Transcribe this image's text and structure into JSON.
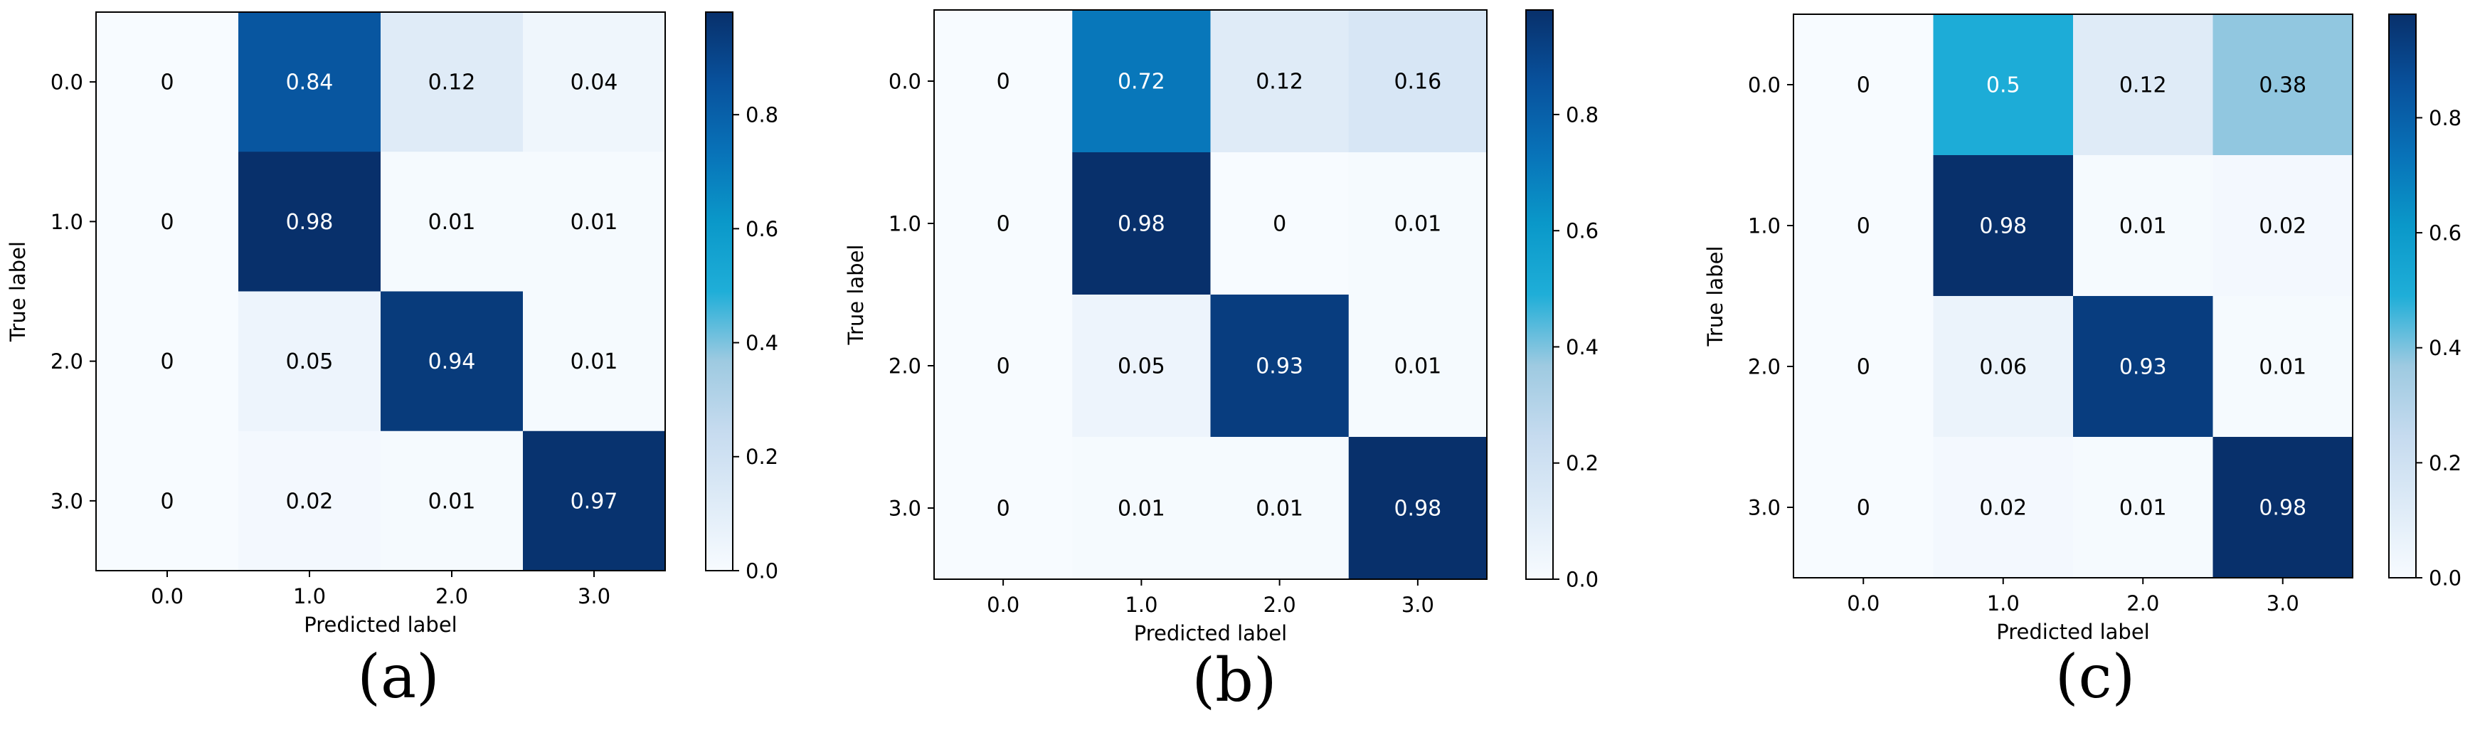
{
  "chart_data": [
    {
      "type": "heatmap",
      "caption": "(a)",
      "xlabel": "Predicted label",
      "ylabel": "True label",
      "x_categories": [
        "0.0",
        "1.0",
        "2.0",
        "3.0"
      ],
      "y_categories": [
        "0.0",
        "1.0",
        "2.0",
        "3.0"
      ],
      "values": [
        [
          0.0,
          0.84,
          0.12,
          0.04
        ],
        [
          0.0,
          0.98,
          0.01,
          0.01
        ],
        [
          0.0,
          0.05,
          0.94,
          0.01
        ],
        [
          0.0,
          0.02,
          0.01,
          0.97
        ]
      ],
      "colorbar": {
        "ticks": [
          "0.0",
          "0.2",
          "0.4",
          "0.6",
          "0.8"
        ],
        "range": [
          0,
          0.98
        ],
        "colormap": "Blues"
      }
    },
    {
      "type": "heatmap",
      "caption": "(b)",
      "xlabel": "Predicted label",
      "ylabel": "True label",
      "x_categories": [
        "0.0",
        "1.0",
        "2.0",
        "3.0"
      ],
      "y_categories": [
        "0.0",
        "1.0",
        "2.0",
        "3.0"
      ],
      "values": [
        [
          0.0,
          0.72,
          0.12,
          0.16
        ],
        [
          0.0,
          0.98,
          0.0,
          0.01
        ],
        [
          0.0,
          0.05,
          0.93,
          0.01
        ],
        [
          0.0,
          0.01,
          0.01,
          0.98
        ]
      ],
      "colorbar": {
        "ticks": [
          "0.0",
          "0.2",
          "0.4",
          "0.6",
          "0.8"
        ],
        "range": [
          0,
          0.98
        ],
        "colormap": "Blues"
      }
    },
    {
      "type": "heatmap",
      "caption": "(c)",
      "xlabel": "Predicted label",
      "ylabel": "True label",
      "x_categories": [
        "0.0",
        "1.0",
        "2.0",
        "3.0"
      ],
      "y_categories": [
        "0.0",
        "1.0",
        "2.0",
        "3.0"
      ],
      "values": [
        [
          0.0,
          0.5,
          0.12,
          0.38
        ],
        [
          0.0,
          0.98,
          0.01,
          0.02
        ],
        [
          0.0,
          0.06,
          0.93,
          0.01
        ],
        [
          0.0,
          0.02,
          0.01,
          0.98
        ]
      ],
      "colorbar": {
        "ticks": [
          "0.0",
          "0.2",
          "0.4",
          "0.6",
          "0.8"
        ],
        "range": [
          0,
          0.98
        ],
        "colormap": "Blues"
      }
    }
  ]
}
